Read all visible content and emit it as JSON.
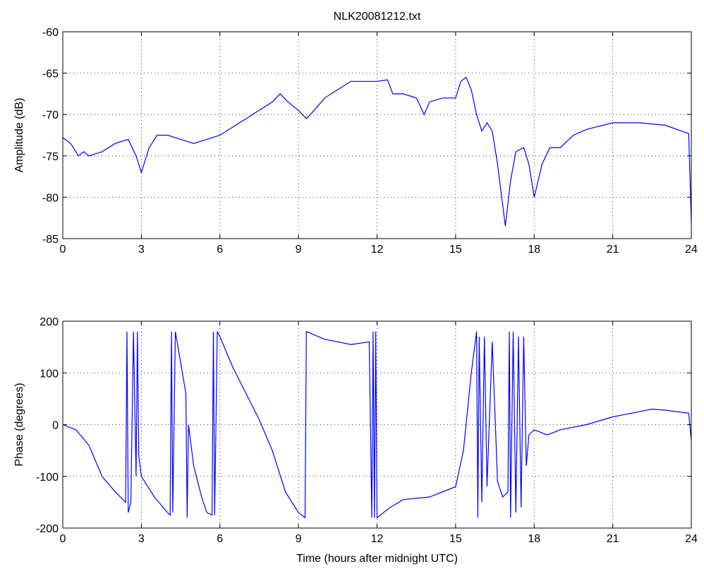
{
  "chart_data": [
    {
      "type": "line",
      "title": "NLK20081212.txt",
      "ylabel": "Amplitude (dB)",
      "color": "#0000ff",
      "grid": true,
      "xlim": [
        0,
        24
      ],
      "xticks": [
        0,
        3,
        6,
        9,
        12,
        15,
        18,
        21,
        24
      ],
      "ylim": [
        -85,
        -60
      ],
      "yticks": [
        -85,
        -80,
        -75,
        -70,
        -65,
        -60
      ],
      "x": [
        0,
        0.3,
        0.6,
        0.8,
        1.0,
        1.5,
        2.0,
        2.5,
        2.8,
        3.0,
        3.3,
        3.6,
        4.0,
        4.5,
        5.0,
        5.5,
        6.0,
        6.5,
        7.0,
        7.5,
        8.0,
        8.3,
        8.6,
        9.0,
        9.3,
        9.6,
        10.0,
        10.5,
        11.0,
        11.5,
        12.0,
        12.4,
        12.6,
        13.0,
        13.5,
        13.8,
        14.0,
        14.5,
        15.0,
        15.2,
        15.4,
        15.6,
        15.8,
        16.0,
        16.2,
        16.4,
        16.6,
        16.9,
        17.1,
        17.3,
        17.6,
        17.8,
        18.0,
        18.3,
        18.6,
        19.0,
        19.5,
        20.0,
        21.0,
        22.0,
        23.0,
        23.9,
        24
      ],
      "values": [
        -72.8,
        -73.5,
        -75,
        -74.5,
        -75,
        -74.5,
        -73.5,
        -73,
        -75,
        -77,
        -74,
        -72.5,
        -72.5,
        -73,
        -73.5,
        -73,
        -72.5,
        -71.5,
        -70.5,
        -69.5,
        -68.5,
        -67.5,
        -68.5,
        -69.5,
        -70.5,
        -69.5,
        -68,
        -67,
        -66,
        -66,
        -66,
        -65.8,
        -67.5,
        -67.5,
        -68,
        -70,
        -68.5,
        -68,
        -68,
        -66,
        -65.5,
        -67,
        -70,
        -72,
        -71,
        -72,
        -76,
        -83.5,
        -78,
        -74.5,
        -74,
        -76,
        -80,
        -76,
        -74,
        -74,
        -72.5,
        -71.8,
        -71,
        -71,
        -71.3,
        -72.3,
        -83
      ]
    },
    {
      "type": "line",
      "ylabel": "Phase (degrees)",
      "xlabel": "Time (hours after midnight UTC)",
      "color": "#0000ff",
      "grid": true,
      "xlim": [
        0,
        24
      ],
      "xticks": [
        0,
        3,
        6,
        9,
        12,
        15,
        18,
        21,
        24
      ],
      "ylim": [
        -200,
        200
      ],
      "yticks": [
        -200,
        -100,
        0,
        100,
        200
      ],
      "x": [
        0,
        0.5,
        1.0,
        1.5,
        2.0,
        2.4,
        2.45,
        2.5,
        2.6,
        2.7,
        2.8,
        2.85,
        2.9,
        3.0,
        3.5,
        4.0,
        4.1,
        4.15,
        4.2,
        4.3,
        4.5,
        4.7,
        4.75,
        4.8,
        5.0,
        5.3,
        5.5,
        5.7,
        5.75,
        5.8,
        5.9,
        6.0,
        6.5,
        7.0,
        7.5,
        8.0,
        8.5,
        9.0,
        9.25,
        9.3,
        10,
        11,
        11.7,
        11.8,
        11.85,
        11.9,
        11.95,
        12.0,
        12.5,
        13.0,
        14.0,
        15.0,
        15.3,
        15.6,
        15.8,
        15.85,
        15.9,
        16.0,
        16.1,
        16.2,
        16.4,
        16.6,
        16.8,
        17.0,
        17.05,
        17.1,
        17.2,
        17.3,
        17.4,
        17.5,
        17.6,
        17.7,
        17.8,
        18.0,
        18.5,
        19.0,
        20,
        21,
        22,
        22.5,
        23,
        23.9,
        24
      ],
      "values": [
        0,
        -10,
        -40,
        -100,
        -130,
        -150,
        180,
        -170,
        -150,
        180,
        -100,
        180,
        -60,
        -100,
        -140,
        -170,
        -175,
        180,
        -170,
        180,
        120,
        60,
        -180,
        0,
        -80,
        -140,
        -170,
        -175,
        180,
        -175,
        180,
        170,
        110,
        60,
        10,
        -50,
        -130,
        -170,
        -180,
        180,
        165,
        155,
        160,
        -180,
        180,
        -180,
        180,
        -180,
        -160,
        -145,
        -140,
        -120,
        -50,
        100,
        180,
        -180,
        170,
        -150,
        170,
        -120,
        160,
        -110,
        -140,
        -130,
        180,
        -180,
        180,
        -170,
        170,
        -160,
        170,
        -80,
        -20,
        -10,
        -20,
        -10,
        0,
        15,
        25,
        30,
        28,
        22,
        -30
      ]
    }
  ]
}
